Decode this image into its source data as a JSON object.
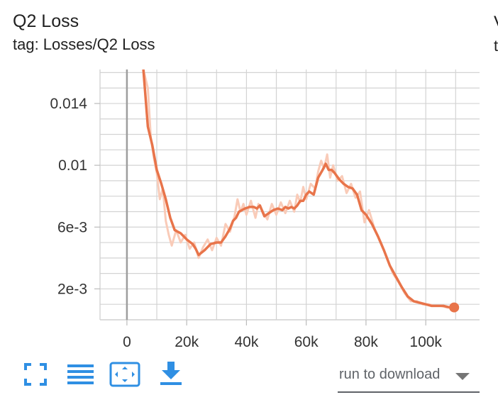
{
  "card": {
    "title": "Q2 Loss",
    "tag": "tag: Losses/Q2 Loss",
    "next_title_fragment": "V",
    "next_tag_fragment": "t"
  },
  "colors": {
    "accent": "#e8744a",
    "accent_light": "#f9cbb8",
    "grid": "#d3d3d3",
    "zero_line": "#9e9e9e",
    "icon_blue": "#2f8fe3"
  },
  "toolbar": {
    "icons": [
      "fullscreen-icon",
      "toggle-log-scale-icon",
      "fit-domain-icon",
      "download-icon"
    ],
    "download_select_label": "run to download"
  },
  "chart_data": {
    "type": "line",
    "title": "",
    "xlabel": "",
    "ylabel": "",
    "xlim": [
      -9000,
      118000
    ],
    "ylim": [
      0.0,
      0.0162
    ],
    "x_ticks": [
      0,
      20000,
      40000,
      60000,
      80000,
      100000
    ],
    "x_tick_labels": [
      "0",
      "20k",
      "40k",
      "60k",
      "80k",
      "100k"
    ],
    "y_ticks": [
      0.002,
      0.006,
      0.01,
      0.014
    ],
    "y_tick_labels": [
      "2e-3",
      "6e-3",
      "0.01",
      "0.014"
    ],
    "grid": true,
    "series": [
      {
        "role": "smoothed",
        "x": [
          5500,
          7000,
          8500,
          10000,
          11500,
          13000,
          14500,
          16000,
          18000,
          20000,
          22000,
          23000,
          24000,
          26000,
          28000,
          30000,
          31500,
          33000,
          34500,
          35500,
          36500,
          37500,
          38500,
          39500,
          41000,
          42500,
          43500,
          44500,
          46000,
          47500,
          49000,
          50500,
          52000,
          53000,
          54000,
          55000,
          56000,
          57000,
          58000,
          59000,
          60000,
          61000,
          62500,
          64000,
          65500,
          66500,
          67500,
          68500,
          69500,
          71000,
          72500,
          74000,
          75500,
          77000,
          78500,
          80000,
          82000,
          84000,
          86000,
          88000,
          90000,
          92000,
          94000,
          96000,
          98000,
          100000,
          102000,
          104000,
          106000,
          108000,
          109500
        ],
        "y": [
          0.0162,
          0.0125,
          0.0113,
          0.0097,
          0.0088,
          0.0078,
          0.0066,
          0.0058,
          0.0056,
          0.0052,
          0.0049,
          0.0046,
          0.0042,
          0.0045,
          0.0049,
          0.005,
          0.005,
          0.0054,
          0.0059,
          0.0064,
          0.0066,
          0.007,
          0.0071,
          0.0072,
          0.0073,
          0.0073,
          0.0072,
          0.0074,
          0.0067,
          0.0069,
          0.0071,
          0.0072,
          0.0071,
          0.0073,
          0.0072,
          0.0073,
          0.0072,
          0.0074,
          0.0077,
          0.0077,
          0.0081,
          0.0083,
          0.0081,
          0.0092,
          0.0097,
          0.0101,
          0.0097,
          0.0097,
          0.0095,
          0.0091,
          0.0088,
          0.0086,
          0.0085,
          0.0081,
          0.0071,
          0.0068,
          0.0062,
          0.0054,
          0.0045,
          0.0035,
          0.0028,
          0.0021,
          0.0015,
          0.0012,
          0.0011,
          0.001,
          0.0009,
          0.0009,
          0.0009,
          0.0008,
          0.0008
        ]
      },
      {
        "role": "raw",
        "x": [
          5500,
          7000,
          8000,
          9000,
          10000,
          11000,
          12000,
          13000,
          14000,
          15000,
          16500,
          18000,
          19500,
          21000,
          22500,
          24000,
          25500,
          27000,
          28500,
          30000,
          31500,
          33000,
          34500,
          36000,
          37000,
          38000,
          39000,
          40000,
          41500,
          43000,
          44000,
          45500,
          47000,
          48500,
          50000,
          51500,
          53000,
          54500,
          56000,
          57000,
          58000,
          59000,
          60000,
          61500,
          63000,
          64000,
          65000,
          66000,
          67000,
          68000,
          69000,
          70500,
          72000,
          73500,
          75000,
          76500,
          78000,
          79500,
          81000,
          83000,
          85000,
          87000,
          89000,
          91000,
          93000,
          95000,
          97000,
          99000,
          101000,
          103000,
          105000,
          107000,
          109000
        ],
        "y": [
          0.0162,
          0.015,
          0.0118,
          0.0105,
          0.0095,
          0.0078,
          0.0085,
          0.0064,
          0.0055,
          0.0048,
          0.0058,
          0.005,
          0.0055,
          0.0046,
          0.005,
          0.004,
          0.0047,
          0.0052,
          0.0045,
          0.0053,
          0.0048,
          0.0062,
          0.0057,
          0.0067,
          0.0078,
          0.007,
          0.0075,
          0.0068,
          0.0077,
          0.0066,
          0.0075,
          0.007,
          0.0065,
          0.0075,
          0.0068,
          0.0076,
          0.0069,
          0.0077,
          0.007,
          0.0081,
          0.0076,
          0.0086,
          0.0078,
          0.0088,
          0.0085,
          0.0096,
          0.0103,
          0.0098,
          0.0107,
          0.0092,
          0.01,
          0.009,
          0.0093,
          0.0082,
          0.0088,
          0.0079,
          0.0083,
          0.0063,
          0.0071,
          0.0058,
          0.005,
          0.004,
          0.003,
          0.0024,
          0.0017,
          0.0012,
          0.0012,
          0.001,
          0.001,
          0.0009,
          0.0009,
          0.0008,
          0.0008
        ]
      }
    ],
    "last_point": {
      "x": 109500,
      "y": 0.0008
    }
  }
}
